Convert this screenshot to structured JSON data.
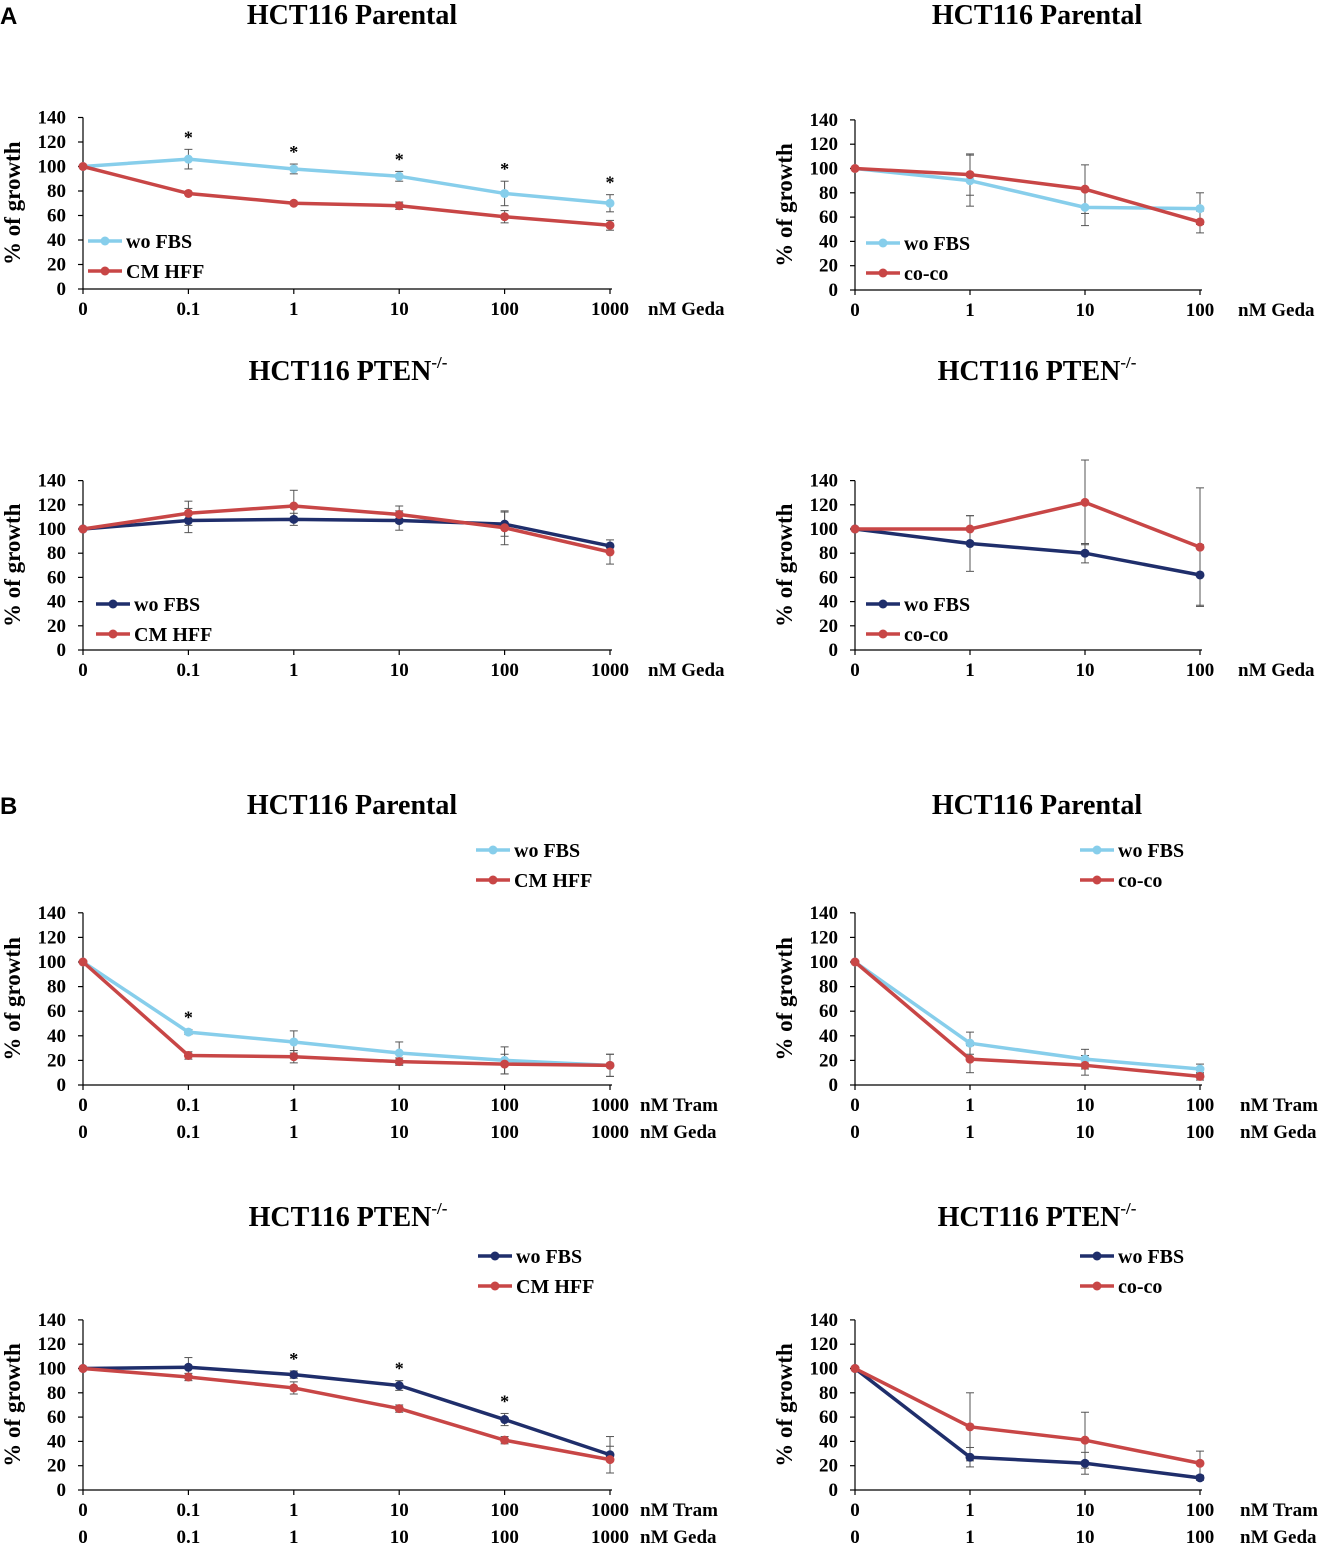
{
  "panel_labels": [
    "A",
    "B"
  ],
  "colors": {
    "light_blue": "#87CEEB",
    "dark_navy": "#1F2E6B",
    "red": "#C84646",
    "axis": "#000000",
    "errbar": "#555555"
  },
  "chart_data": [
    {
      "type": "line",
      "panel": "A",
      "title": "HCT116 Parental",
      "title_sup": "",
      "categories": [
        "0",
        "0.1",
        "1",
        "10",
        "100",
        "1000"
      ],
      "x_axis_labels": [
        "nM Geda"
      ],
      "ylabel": "% of growth",
      "ylim": [
        0,
        140
      ],
      "yticks": [
        0,
        20,
        40,
        60,
        80,
        100,
        120,
        140
      ],
      "legend_position": "bottom-left",
      "series": [
        {
          "name": "wo FBS",
          "color": "#87CEEB",
          "values": [
            100,
            106,
            98,
            92,
            78,
            70
          ],
          "errors": [
            0,
            8,
            4,
            4,
            10,
            7
          ]
        },
        {
          "name": "CM HFF",
          "color": "#C84646",
          "values": [
            100,
            78,
            70,
            68,
            59,
            52
          ],
          "errors": [
            0,
            0,
            1,
            3,
            5,
            4
          ]
        }
      ],
      "significance": [
        "",
        "*",
        "*",
        "*",
        "*",
        "*"
      ]
    },
    {
      "type": "line",
      "panel": "A",
      "title": "HCT116 Parental",
      "title_sup": "",
      "categories": [
        "0",
        "1",
        "10",
        "100"
      ],
      "x_axis_labels": [
        "nM Geda"
      ],
      "ylabel": "% of growth",
      "ylim": [
        0,
        140
      ],
      "yticks": [
        0,
        20,
        40,
        60,
        80,
        100,
        120,
        140
      ],
      "legend_position": "bottom-left",
      "series": [
        {
          "name": "wo FBS",
          "color": "#87CEEB",
          "values": [
            100,
            90,
            68,
            67
          ],
          "errors": [
            0,
            21,
            15,
            13
          ]
        },
        {
          "name": "co-co",
          "color": "#C84646",
          "values": [
            100,
            95,
            83,
            56
          ],
          "errors": [
            0,
            17,
            20,
            9
          ]
        }
      ],
      "significance": [
        "",
        "",
        "",
        ""
      ]
    },
    {
      "type": "line",
      "panel": "A",
      "title": "HCT116 PTEN",
      "title_sup": "-/-",
      "categories": [
        "0",
        "0.1",
        "1",
        "10",
        "100",
        "1000"
      ],
      "x_axis_labels": [
        "nM Geda"
      ],
      "ylabel": "% of growth",
      "ylim": [
        0,
        140
      ],
      "yticks": [
        0,
        20,
        40,
        60,
        80,
        100,
        120,
        140
      ],
      "legend_position": "bottom-left",
      "series": [
        {
          "name": "wo FBS",
          "color": "#1F2E6B",
          "values": [
            100,
            107,
            108,
            107,
            104,
            86
          ],
          "errors": [
            0,
            10,
            5,
            8,
            10,
            0
          ]
        },
        {
          "name": "CM HFF",
          "color": "#C84646",
          "values": [
            100,
            113,
            119,
            112,
            101,
            81
          ],
          "errors": [
            0,
            10,
            13,
            7,
            14,
            10
          ]
        }
      ],
      "significance": [
        "",
        "",
        "",
        "",
        "",
        ""
      ]
    },
    {
      "type": "line",
      "panel": "A",
      "title": "HCT116 PTEN",
      "title_sup": "-/-",
      "categories": [
        "0",
        "1",
        "10",
        "100"
      ],
      "x_axis_labels": [
        "nM Geda"
      ],
      "ylabel": "% of growth",
      "ylim": [
        0,
        140
      ],
      "yticks": [
        0,
        20,
        40,
        60,
        80,
        100,
        120,
        140
      ],
      "legend_position": "bottom-left",
      "series": [
        {
          "name": "wo FBS",
          "color": "#1F2E6B",
          "values": [
            100,
            88,
            80,
            62
          ],
          "errors": [
            0,
            23,
            8,
            25
          ]
        },
        {
          "name": "co-co",
          "color": "#C84646",
          "values": [
            100,
            100,
            122,
            85
          ],
          "errors": [
            0,
            11,
            35,
            49
          ]
        }
      ],
      "significance": [
        "",
        "",
        "",
        ""
      ]
    },
    {
      "type": "line",
      "panel": "B",
      "title": "HCT116 Parental",
      "title_sup": "",
      "categories": [
        "0",
        "0.1",
        "1",
        "10",
        "100",
        "1000"
      ],
      "x_axis_labels": [
        "nM Tram",
        "nM Geda"
      ],
      "ylabel": "% of growth",
      "ylim": [
        0,
        140
      ],
      "yticks": [
        0,
        20,
        40,
        60,
        80,
        100,
        120,
        140
      ],
      "legend_position": "top-right",
      "series": [
        {
          "name": "wo FBS",
          "color": "#87CEEB",
          "values": [
            100,
            43,
            35,
            26,
            20,
            16
          ],
          "errors": [
            0,
            2,
            9,
            9,
            11,
            9
          ]
        },
        {
          "name": "CM HFF",
          "color": "#C84646",
          "values": [
            100,
            24,
            23,
            19,
            17,
            16
          ],
          "errors": [
            0,
            3,
            5,
            3,
            8,
            9
          ]
        }
      ],
      "significance": [
        "",
        "*",
        "",
        "",
        "",
        ""
      ]
    },
    {
      "type": "line",
      "panel": "B",
      "title": "HCT116 Parental",
      "title_sup": "",
      "categories": [
        "0",
        "1",
        "10",
        "100"
      ],
      "x_axis_labels": [
        "nM Tram",
        "nM Geda"
      ],
      "ylabel": "% of growth",
      "ylim": [
        0,
        140
      ],
      "yticks": [
        0,
        20,
        40,
        60,
        80,
        100,
        120,
        140
      ],
      "legend_position": "top-right",
      "series": [
        {
          "name": "wo FBS",
          "color": "#87CEEB",
          "values": [
            100,
            34,
            21,
            13
          ],
          "errors": [
            0,
            9,
            8,
            4
          ]
        },
        {
          "name": "co-co",
          "color": "#C84646",
          "values": [
            100,
            21,
            16,
            7
          ],
          "errors": [
            0,
            11,
            8,
            3
          ]
        }
      ],
      "significance": [
        "",
        "",
        "",
        ""
      ]
    },
    {
      "type": "line",
      "panel": "B",
      "title": "HCT116 PTEN",
      "title_sup": "-/-",
      "categories": [
        "0",
        "0.1",
        "1",
        "10",
        "100",
        "1000"
      ],
      "x_axis_labels": [
        "nM Tram",
        "nM Geda"
      ],
      "ylabel": "% of growth",
      "ylim": [
        0,
        140
      ],
      "yticks": [
        0,
        20,
        40,
        60,
        80,
        100,
        120,
        140
      ],
      "legend_position": "top-right",
      "series": [
        {
          "name": "wo FBS",
          "color": "#1F2E6B",
          "values": [
            100,
            101,
            95,
            86,
            58,
            29
          ],
          "errors": [
            0,
            8,
            3,
            4,
            5,
            15
          ]
        },
        {
          "name": "CM HFF",
          "color": "#C84646",
          "values": [
            100,
            93,
            84,
            67,
            41,
            25
          ],
          "errors": [
            0,
            3,
            5,
            3,
            3,
            11
          ]
        }
      ],
      "significance": [
        "",
        "",
        "*",
        "*",
        "*",
        ""
      ]
    },
    {
      "type": "line",
      "panel": "B",
      "title": "HCT116 PTEN",
      "title_sup": "-/-",
      "categories": [
        "0",
        "1",
        "10",
        "100"
      ],
      "x_axis_labels": [
        "nM Tram",
        "nM Geda"
      ],
      "ylabel": "% of growth",
      "ylim": [
        0,
        140
      ],
      "yticks": [
        0,
        20,
        40,
        60,
        80,
        100,
        120,
        140
      ],
      "legend_position": "top-right",
      "series": [
        {
          "name": "wo FBS",
          "color": "#1F2E6B",
          "values": [
            100,
            27,
            22,
            10
          ],
          "errors": [
            0,
            8,
            9,
            2
          ]
        },
        {
          "name": "co-co",
          "color": "#C84646",
          "values": [
            100,
            52,
            41,
            22
          ],
          "errors": [
            0,
            28,
            23,
            10
          ]
        }
      ],
      "significance": [
        "",
        "",
        "",
        ""
      ]
    }
  ]
}
